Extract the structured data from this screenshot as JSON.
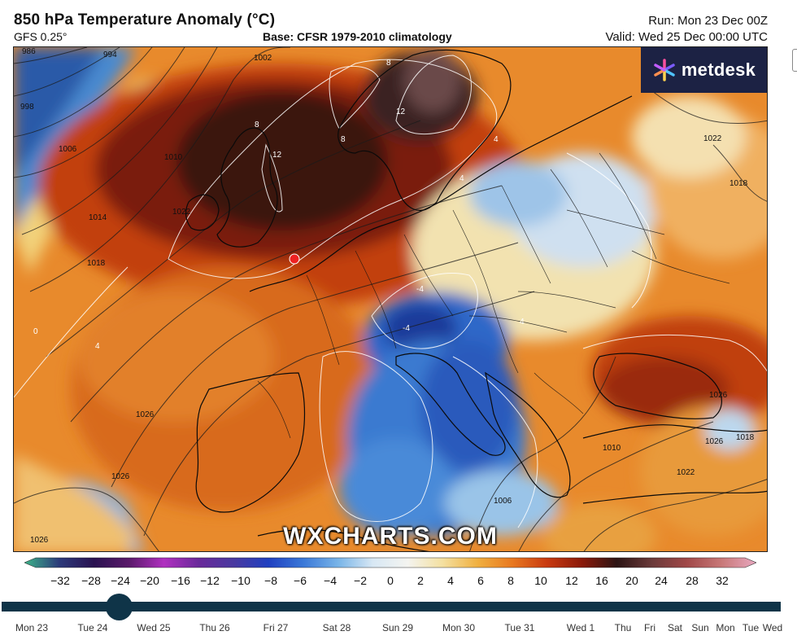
{
  "header": {
    "title": "850 hPa Temperature Anomaly (°C)",
    "model": "GFS 0.25°",
    "base": "Base: CFSR 1979-2010 climatology",
    "run": "Run: Mon 23 Dec 00Z",
    "valid": "Valid: Wed 25 Dec 00:00 UTC"
  },
  "logo": {
    "text": "metdesk",
    "colors": [
      "#ff4fa0",
      "#7b5cff",
      "#4fc3ff",
      "#ffd24f"
    ]
  },
  "watermark": "WXCHARTS.COM",
  "map": {
    "isobar_labels": [
      "994",
      "998",
      "1006",
      "1010",
      "1014",
      "1018",
      "1022",
      "1026",
      "1026",
      "1022",
      "1018",
      "1026",
      "1026",
      "1018",
      "1022",
      "1026",
      "1010",
      "1006",
      "1002",
      "986"
    ],
    "anomaly_labels": [
      "8",
      "8",
      "12",
      "12",
      "8",
      "4",
      "4",
      "-4",
      "-4",
      "4",
      "0",
      "4"
    ],
    "marker_color": "#ee2222"
  },
  "colorbar": {
    "ticks": [
      "−32",
      "−28",
      "−24",
      "−20",
      "−16",
      "−12",
      "−10",
      "−8",
      "−6",
      "−4",
      "−2",
      "0",
      "2",
      "4",
      "6",
      "8",
      "10",
      "12",
      "16",
      "20",
      "24",
      "28",
      "32"
    ],
    "tick_x": [
      74,
      112,
      148,
      184,
      222,
      258,
      296,
      333,
      369,
      406,
      443,
      480,
      517,
      554,
      591,
      628,
      665,
      703,
      740,
      777,
      813,
      851,
      888
    ],
    "stops": [
      "#3cb489",
      "#2c3a7a",
      "#2a1250",
      "#5a1a6a",
      "#b030c0",
      "#6a2a9a",
      "#4a3aa0",
      "#2040c0",
      "#3a78d8",
      "#78b4e8",
      "#d8e8f4",
      "#f4f4f0",
      "#f4e0a0",
      "#f0b040",
      "#e87820",
      "#c83a10",
      "#8a1a0a",
      "#2c1414",
      "#6a3a3a",
      "#a04848",
      "#c87878",
      "#e8a8c0"
    ]
  },
  "timeline": {
    "labels": [
      "Mon 23",
      "Tue 24",
      "Wed 25",
      "Thu 26",
      "Fri 27",
      "Sat 28",
      "Sun 29",
      "Mon 30",
      "Tue 31",
      "Wed 1",
      "Thu",
      "Fri",
      "Sat",
      "Sun",
      "Mon",
      "Tue",
      "Wed"
    ],
    "label_x": [
      39,
      114,
      189,
      264,
      339,
      414,
      489,
      564,
      639,
      714,
      766,
      799,
      830,
      861,
      892,
      923,
      950
    ],
    "position": 0.15
  }
}
